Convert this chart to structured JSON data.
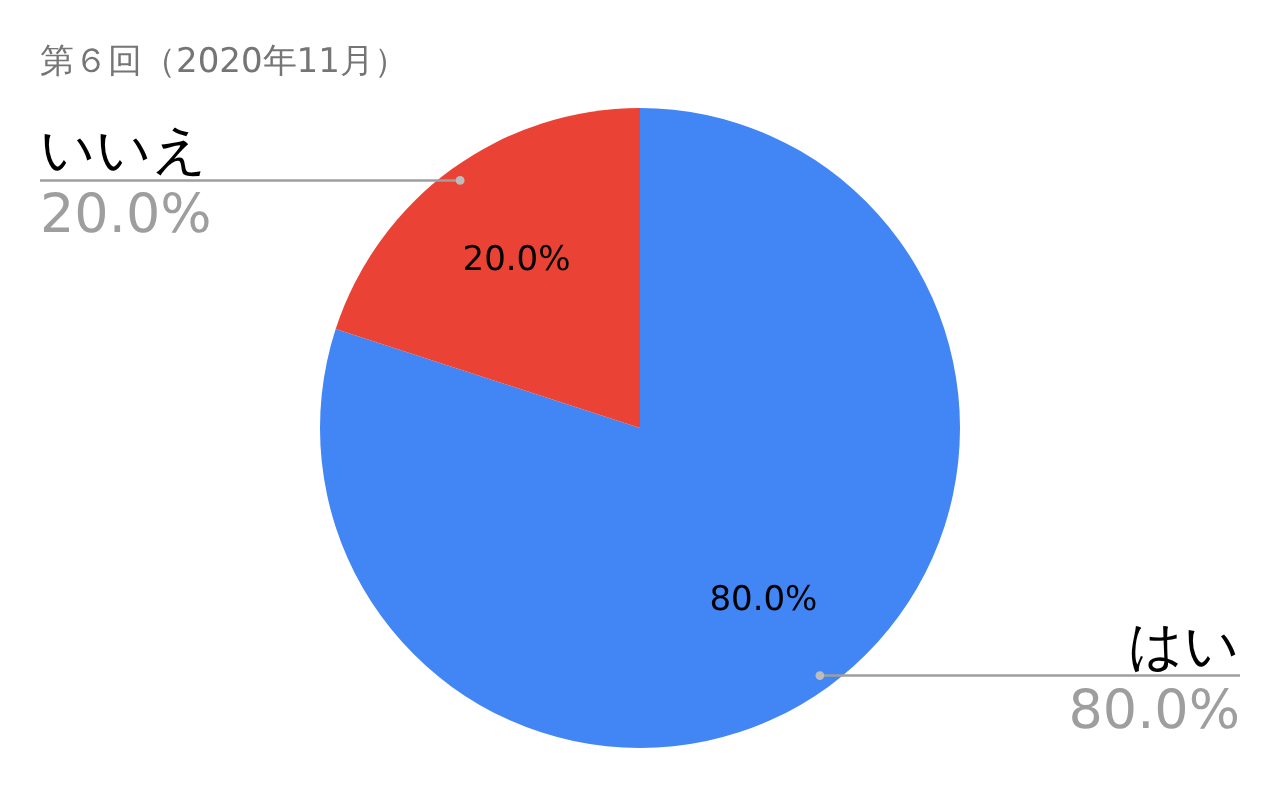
{
  "chart_data": {
    "type": "pie",
    "title": "第６回（2020年11月）",
    "categories": [
      "はい",
      "いいえ"
    ],
    "values": [
      80,
      20
    ],
    "colors": [
      "#4285f4",
      "#ea4335"
    ],
    "value_labels": [
      "80.0%",
      "20.0%"
    ],
    "legend": false
  }
}
